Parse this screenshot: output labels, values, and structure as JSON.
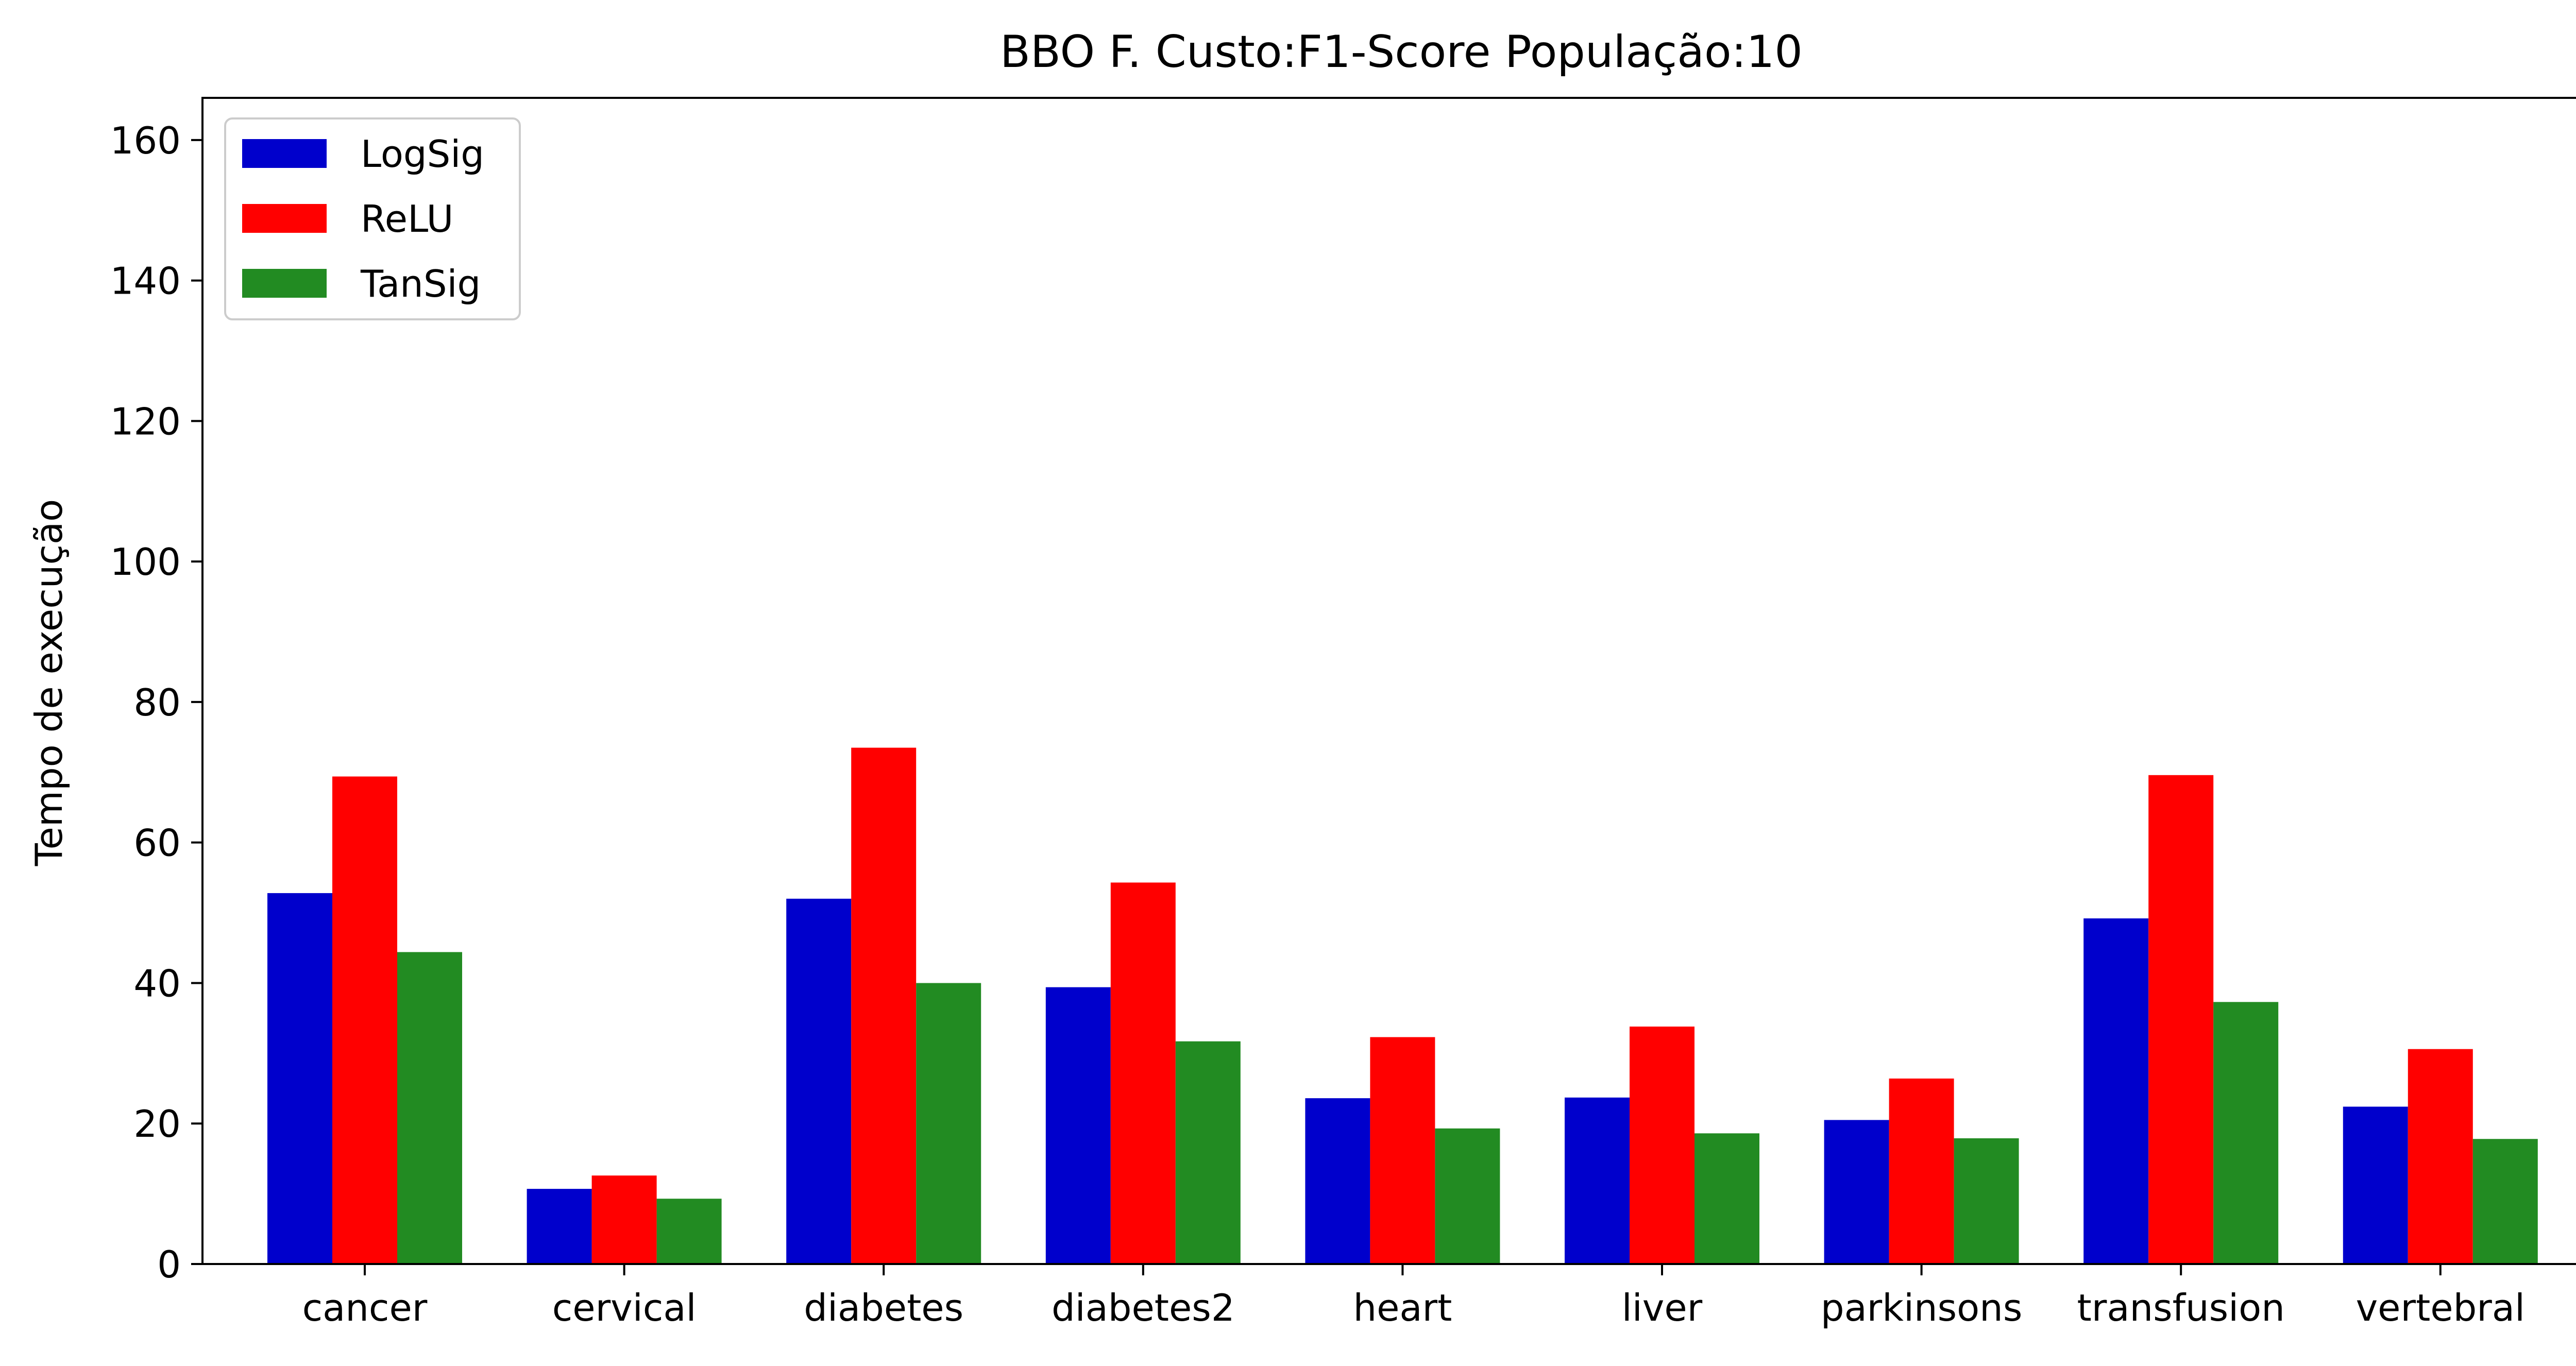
{
  "chart_data": {
    "type": "bar",
    "title": "BBO F. Custo:F1-Score População:10",
    "xlabel": "",
    "ylabel": "Tempo de execução",
    "ylim": [
      0,
      166
    ],
    "yticks": [
      "0",
      "20",
      "40",
      "60",
      "80",
      "100",
      "120",
      "140",
      "160"
    ],
    "categories": [
      "cancer",
      "cervical",
      "diabetes",
      "diabetes2",
      "heart",
      "liver",
      "parkinsons",
      "transfusion",
      "vertebral"
    ],
    "series": [
      {
        "name": "LogSig",
        "color": "#0000cc",
        "values": [
          52.8,
          10.7,
          52.0,
          39.4,
          23.6,
          23.7,
          20.5,
          49.2,
          22.4
        ]
      },
      {
        "name": "ReLU",
        "color": "#ff0000",
        "values": [
          69.4,
          12.6,
          73.5,
          54.3,
          32.3,
          33.8,
          26.4,
          69.6,
          30.6
        ]
      },
      {
        "name": "TanSig",
        "color": "#228b22",
        "values": [
          44.4,
          9.3,
          40.0,
          31.7,
          19.3,
          18.6,
          17.9,
          37.3,
          17.8
        ]
      }
    ],
    "legend": "upper-left",
    "grid": false
  }
}
